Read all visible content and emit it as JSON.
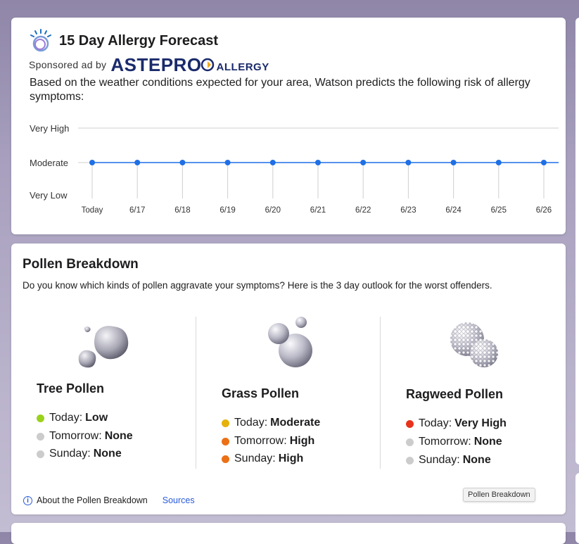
{
  "forecast": {
    "title": "15 Day Allergy Forecast",
    "sponsored_label": "Sponsored ad by",
    "brand_name": "ASTEPRO",
    "brand_suffix": "ALLERGY",
    "description": "Based on the weather conditions expected for your area, Watson predicts the following risk of allergy symptoms:"
  },
  "chart_data": {
    "type": "line",
    "title": "",
    "xlabel": "",
    "ylabel": "",
    "y_levels": [
      "Very Low",
      "Moderate",
      "Very High"
    ],
    "x": [
      "Today",
      "6/17",
      "6/18",
      "6/19",
      "6/20",
      "6/21",
      "6/22",
      "6/23",
      "6/24",
      "6/25",
      "6/26"
    ],
    "series": [
      {
        "values": [
          "Moderate",
          "Moderate",
          "Moderate",
          "Moderate",
          "Moderate",
          "Moderate",
          "Moderate",
          "Moderate",
          "Moderate",
          "Moderate",
          "Moderate"
        ]
      }
    ],
    "color": "#1f6fe6",
    "grid": true
  },
  "pollen": {
    "title": "Pollen Breakdown",
    "description": "Do you know which kinds of pollen aggravate your symptoms? Here is the 3 day outlook for the worst offenders.",
    "types": [
      {
        "name": "Tree Pollen",
        "icon": "tree-pollen-icon",
        "days": [
          {
            "label": "Today:",
            "value": "Low",
            "color": "#9ad21b"
          },
          {
            "label": "Tomorrow:",
            "value": "None",
            "color": "#cccccc"
          },
          {
            "label": "Sunday:",
            "value": "None",
            "color": "#cccccc"
          }
        ]
      },
      {
        "name": "Grass Pollen",
        "icon": "grass-pollen-icon",
        "days": [
          {
            "label": "Today:",
            "value": "Moderate",
            "color": "#e5b20b"
          },
          {
            "label": "Tomorrow:",
            "value": "High",
            "color": "#ec7016"
          },
          {
            "label": "Sunday:",
            "value": "High",
            "color": "#ec7016"
          }
        ]
      },
      {
        "name": "Ragweed Pollen",
        "icon": "ragweed-pollen-icon",
        "days": [
          {
            "label": "Today:",
            "value": "Very High",
            "color": "#e8321c"
          },
          {
            "label": "Tomorrow:",
            "value": "None",
            "color": "#cccccc"
          },
          {
            "label": "Sunday:",
            "value": "None",
            "color": "#cccccc"
          }
        ]
      }
    ],
    "about_label": "About the Pollen Breakdown",
    "sources_label": "Sources",
    "tooltip": "Pollen Breakdown"
  }
}
